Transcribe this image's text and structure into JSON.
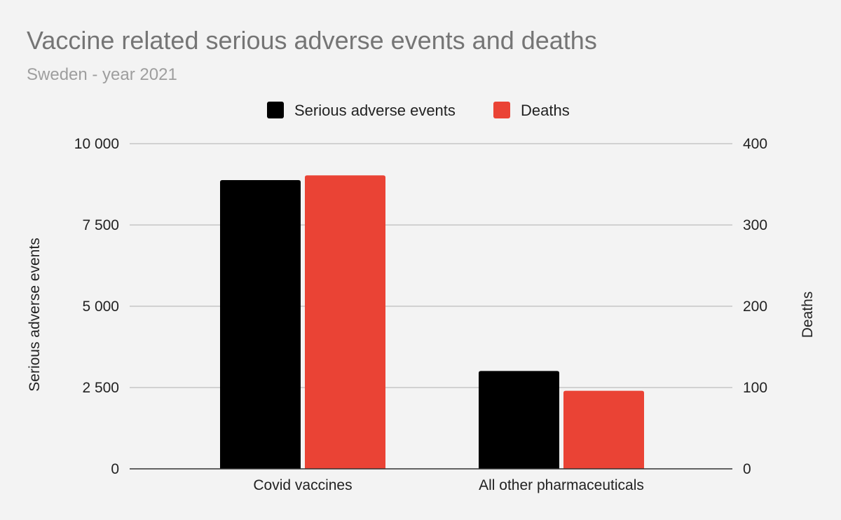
{
  "chart_data": {
    "type": "bar",
    "title": "Vaccine related serious adverse events and deaths",
    "subtitle": "Sweden - year 2021",
    "categories": [
      "Covid vaccines",
      "All other pharmaceuticals"
    ],
    "series": [
      {
        "name": "Serious adverse events",
        "color": "#000000",
        "axis": "left",
        "values": [
          8880,
          3010
        ]
      },
      {
        "name": "Deaths",
        "color": "#ea4335",
        "axis": "right",
        "values": [
          361,
          96
        ]
      }
    ],
    "y_left": {
      "label": "Serious adverse events",
      "ylim": [
        0,
        10000
      ],
      "ticks": [
        "0",
        "2 500",
        "5 000",
        "7 500",
        "10 000"
      ]
    },
    "y_right": {
      "label": "Deaths",
      "ylim": [
        0,
        400
      ],
      "ticks": [
        "0",
        "100",
        "200",
        "300",
        "400"
      ]
    },
    "legend": "top",
    "grid": true
  }
}
